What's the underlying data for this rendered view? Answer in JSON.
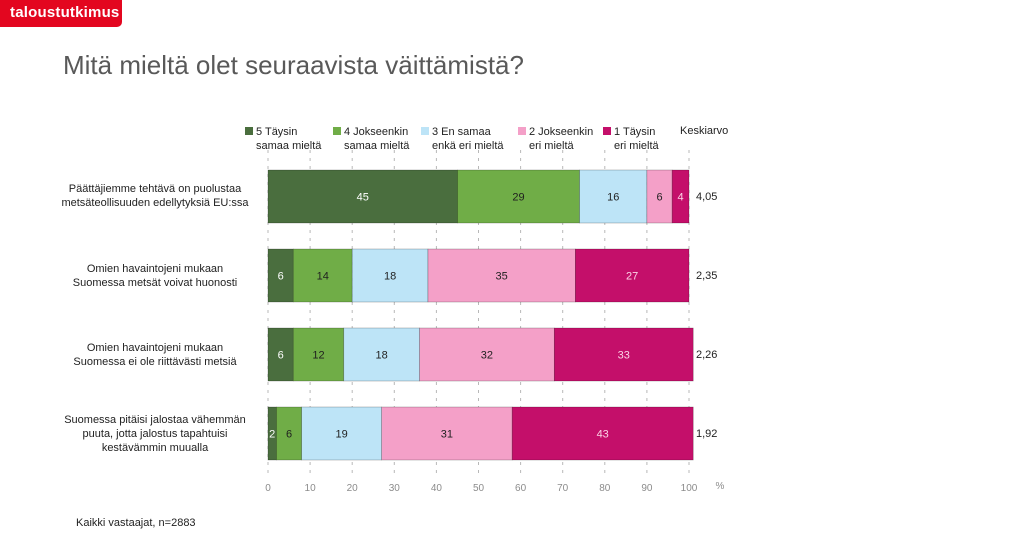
{
  "brand": {
    "name": "taloustutkimus"
  },
  "title": "Mitä mieltä olet seuraavista väittämistä?",
  "footnote": "Kaikki vastaajat, n=2883",
  "chart_data": {
    "type": "bar",
    "orientation": "horizontal",
    "stacked": true,
    "title": "Mitä mieltä olet seuraavista väittämistä?",
    "xlabel": "%",
    "xlim": [
      0,
      100
    ],
    "xticks": [
      "0",
      "10",
      "20",
      "30",
      "40",
      "50",
      "60",
      "70",
      "80",
      "90",
      "100"
    ],
    "x_unit": "%",
    "grid": "vertical dashed",
    "legend_position": "top",
    "mean_header": "Keskiarvo",
    "categories": [
      [
        "Päättäjiemme tehtävä on puolustaa",
        "metsäteollisuuden edellytyksiä EU:ssa"
      ],
      [
        "Omien havaintojeni mukaan",
        "Suomessa metsät voivat huonosti"
      ],
      [
        "Omien havaintojeni mukaan",
        "Suomessa ei ole riittävästi metsiä"
      ],
      [
        "Suomessa pitäisi jalostaa vähemmän",
        "puuta, jotta jalostus tapahtuisi",
        "kestävämmin muualla"
      ]
    ],
    "series": [
      {
        "name": [
          "5 Täysin",
          "samaa mieltä"
        ],
        "color": "#4a6e3e",
        "label_color": "#ffffff",
        "values": [
          45,
          6,
          6,
          2
        ]
      },
      {
        "name": [
          "4 Jokseenkin",
          "samaa mieltä"
        ],
        "color": "#70ad47",
        "label_color": "#1f1f1f",
        "values": [
          29,
          14,
          12,
          6
        ]
      },
      {
        "name": [
          "3 En samaa",
          "enkä eri mieltä"
        ],
        "color": "#bde4f7",
        "label_color": "#1f1f1f",
        "values": [
          16,
          18,
          18,
          19
        ]
      },
      {
        "name": [
          "2 Jokseenkin",
          "eri mieltä"
        ],
        "color": "#f4a0c8",
        "label_color": "#1f1f1f",
        "values": [
          6,
          35,
          32,
          31
        ]
      },
      {
        "name": [
          "1 Täysin",
          "eri mieltä"
        ],
        "color": "#c40f6a",
        "label_color": "#fbd3e6",
        "values": [
          4,
          27,
          33,
          43
        ]
      }
    ],
    "means": [
      "4,05",
      "2,35",
      "2,26",
      "1,92"
    ]
  }
}
